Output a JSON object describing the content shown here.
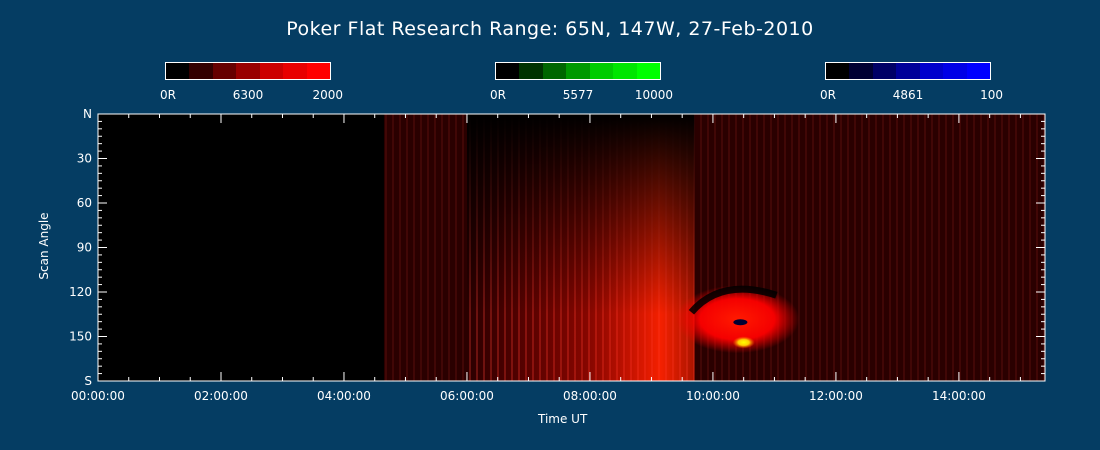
{
  "title": "Poker Flat Research Range: 65N, 147W, 27-Feb-2010",
  "colorbars": [
    {
      "name": "6300",
      "labels": [
        "0R",
        "6300",
        "2000"
      ],
      "colors": [
        "#000000",
        "#330000",
        "#660000",
        "#990000",
        "#cc0000",
        "#e80000",
        "#ff0000"
      ]
    },
    {
      "name": "5577",
      "labels": [
        "0R",
        "5577",
        "10000"
      ],
      "colors": [
        "#000000",
        "#003300",
        "#006600",
        "#009900",
        "#00cc00",
        "#00e600",
        "#00ff00"
      ]
    },
    {
      "name": "4861",
      "labels": [
        "0R",
        "4861",
        "100"
      ],
      "colors": [
        "#000000",
        "#000033",
        "#000066",
        "#000099",
        "#0000cc",
        "#0000e6",
        "#0000ff"
      ]
    }
  ],
  "chart_data": {
    "type": "heatmap",
    "title": "Poker Flat Research Range: 65N, 147W, 27-Feb-2010",
    "xlabel": "Time UT",
    "ylabel": "Scan Angle",
    "x_ticks": [
      "00:00:00",
      "02:00:00",
      "04:00:00",
      "06:00:00",
      "08:00:00",
      "10:00:00",
      "12:00:00",
      "14:00:00"
    ],
    "x_tick_hours": [
      0,
      2,
      4,
      6,
      8,
      10,
      12,
      14
    ],
    "xlim_hours": [
      0,
      15.4
    ],
    "y_ticks": [
      "N",
      "30",
      "60",
      "90",
      "120",
      "150",
      "S"
    ],
    "y_tick_values": [
      0,
      30,
      60,
      90,
      120,
      150,
      180
    ],
    "ylim": [
      0,
      180
    ],
    "data_start_hour": 4.65,
    "features": [
      {
        "desc": "bright red emission band",
        "start_hour": 6.0,
        "peak_hour": 8.4,
        "end_hour": 9.7,
        "scan_min": 60,
        "scan_max": 180
      },
      {
        "desc": "bright red patch",
        "center_hour": 10.3,
        "scan_center": 137
      },
      {
        "desc": "yellow spot",
        "center_hour": 10.5,
        "scan_center": 154
      }
    ]
  }
}
